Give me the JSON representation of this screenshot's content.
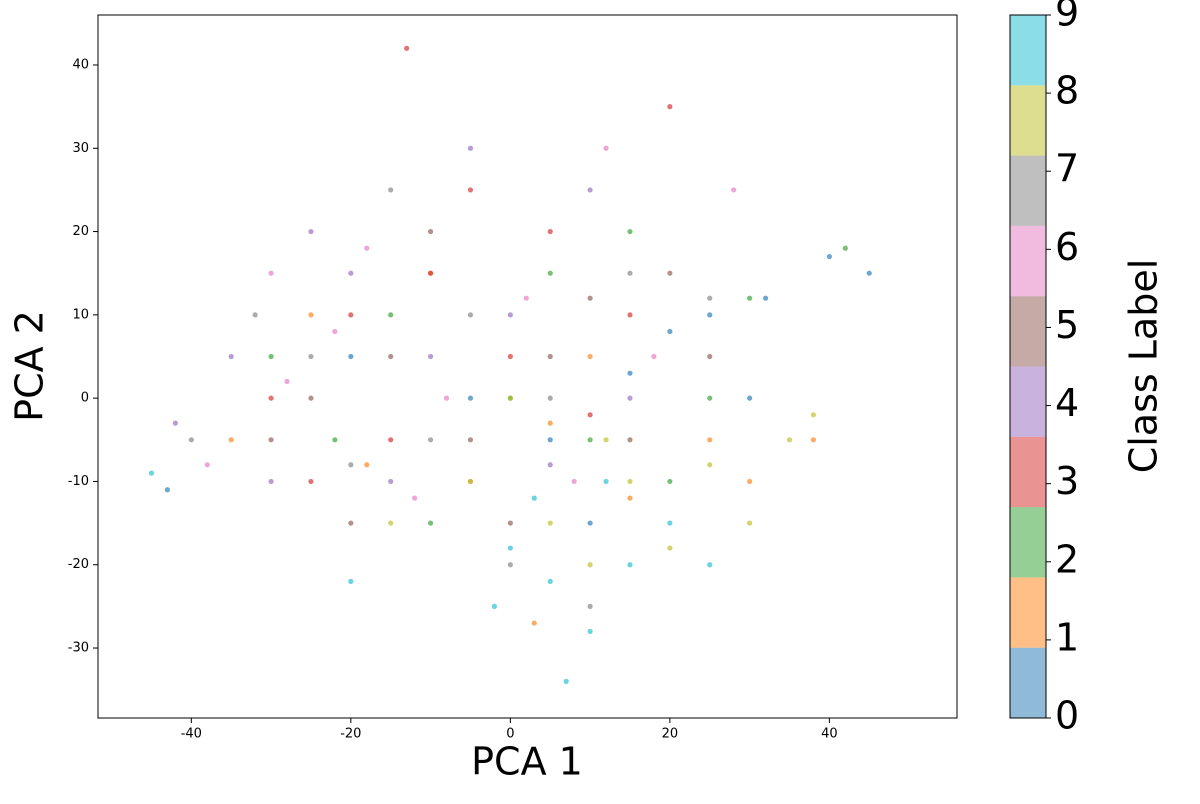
{
  "chart_data": {
    "type": "scatter",
    "xlabel": "PCA 1",
    "ylabel": "PCA 2",
    "colorbar_label": "Class Label",
    "xlim": [
      -51.7,
      56
    ],
    "ylim": [
      -38.4,
      46
    ],
    "xticks": [
      -40,
      -20,
      0,
      20,
      40
    ],
    "yticks": [
      -30,
      -20,
      -10,
      0,
      10,
      20,
      30,
      40
    ],
    "series": [
      {
        "name": "0",
        "color": "#1f77b4",
        "x": [
          -43,
          -20,
          -5,
          5,
          15,
          25,
          32,
          40,
          45,
          30,
          10,
          20
        ],
        "values": [
          -11,
          5,
          0,
          -5,
          3,
          10,
          12,
          17,
          15,
          0,
          -15,
          8
        ]
      },
      {
        "name": "1",
        "color": "#ff7f0e",
        "x": [
          -35,
          -18,
          -5,
          5,
          15,
          25,
          30,
          3,
          -10,
          10,
          38,
          -25
        ],
        "values": [
          -5,
          -8,
          -10,
          -3,
          -12,
          -5,
          -10,
          -27,
          15,
          5,
          -5,
          10
        ]
      },
      {
        "name": "2",
        "color": "#2ca02c",
        "x": [
          -30,
          -15,
          0,
          10,
          20,
          30,
          42,
          -10,
          5,
          15,
          -22,
          25
        ],
        "values": [
          5,
          10,
          0,
          -5,
          -10,
          12,
          18,
          -15,
          15,
          20,
          -5,
          0
        ]
      },
      {
        "name": "3",
        "color": "#d62728",
        "x": [
          -30,
          -20,
          -10,
          0,
          5,
          -15,
          10,
          20,
          -13,
          -25,
          15,
          -5
        ],
        "values": [
          0,
          10,
          15,
          5,
          20,
          -5,
          -2,
          35,
          42,
          -10,
          10,
          25
        ]
      },
      {
        "name": "4",
        "color": "#9467bd",
        "x": [
          -42,
          -30,
          -20,
          -10,
          0,
          -5,
          5,
          15,
          -35,
          -25,
          10,
          -15
        ],
        "values": [
          -3,
          -10,
          15,
          5,
          10,
          30,
          -8,
          0,
          5,
          20,
          25,
          -10
        ]
      },
      {
        "name": "5",
        "color": "#8c564b",
        "x": [
          -25,
          -15,
          -5,
          5,
          15,
          -10,
          0,
          20,
          -30,
          10,
          -20,
          25
        ],
        "values": [
          0,
          5,
          -5,
          5,
          -5,
          20,
          -15,
          15,
          -5,
          12,
          -15,
          5
        ]
      },
      {
        "name": "6",
        "color": "#e377c2",
        "x": [
          -38,
          -28,
          -18,
          -8,
          2,
          12,
          -22,
          -12,
          8,
          18,
          -30,
          28
        ],
        "values": [
          -8,
          2,
          18,
          0,
          12,
          30,
          8,
          -12,
          -10,
          5,
          15,
          25
        ]
      },
      {
        "name": "7",
        "color": "#7f7f7f",
        "x": [
          -40,
          -25,
          -15,
          -5,
          5,
          15,
          -10,
          0,
          -20,
          25,
          -32,
          10
        ],
        "values": [
          -5,
          5,
          25,
          10,
          0,
          15,
          -5,
          -20,
          -8,
          12,
          10,
          -25
        ]
      },
      {
        "name": "8",
        "color": "#bcbd22",
        "x": [
          -5,
          5,
          15,
          25,
          35,
          30,
          10,
          0,
          20,
          -15,
          38,
          12
        ],
        "values": [
          -10,
          -15,
          -10,
          -8,
          -5,
          -15,
          -20,
          0,
          -18,
          -15,
          -2,
          -5
        ]
      },
      {
        "name": "9",
        "color": "#17becf",
        "x": [
          0,
          5,
          10,
          15,
          20,
          7,
          -2,
          12,
          25,
          -20,
          -45,
          3
        ],
        "values": [
          -18,
          -22,
          -28,
          -20,
          -15,
          -34,
          -25,
          -10,
          -20,
          -22,
          -9,
          -12
        ]
      }
    ]
  }
}
